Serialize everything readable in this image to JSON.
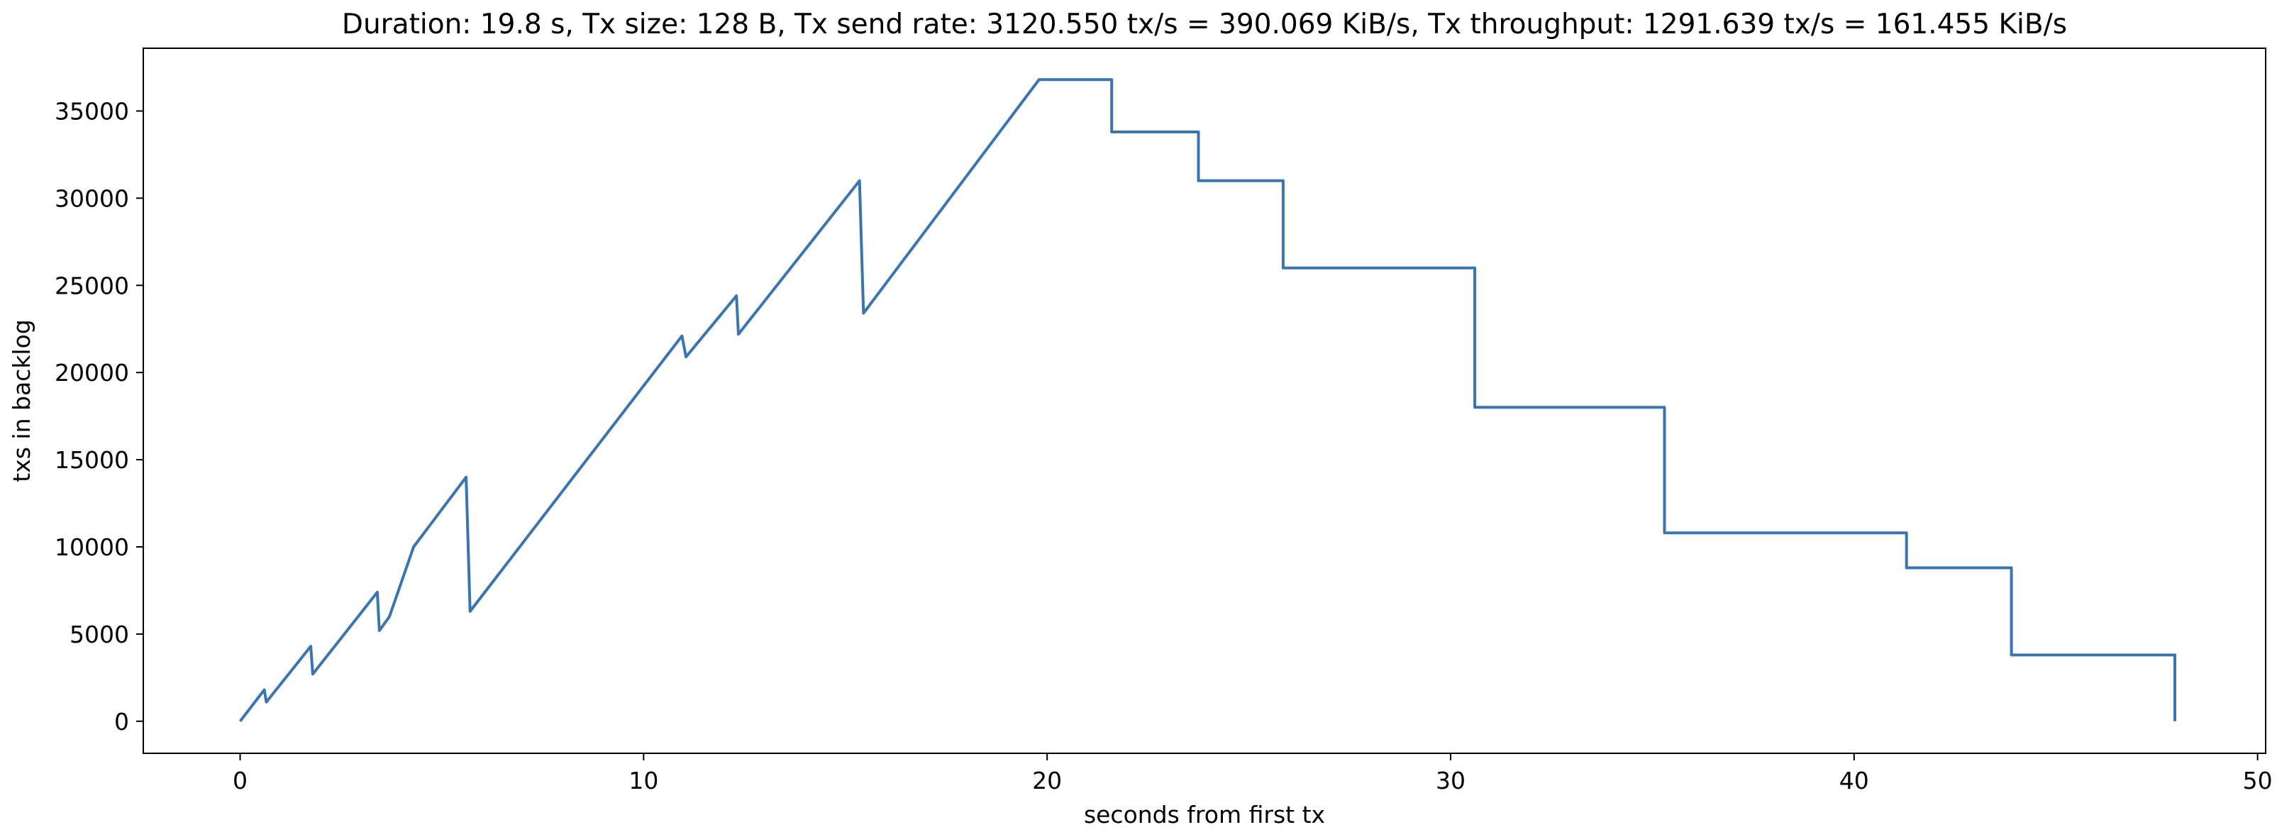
{
  "chart_data": {
    "type": "line",
    "title": "Duration: 19.8 s, Tx size: 128 B, Tx send rate: 3120.550 tx/s = 390.069 KiB/s, Tx throughput: 1291.639 tx/s = 161.455 KiB/s",
    "xlabel": "seconds from first tx",
    "ylabel": "txs in backlog",
    "xlim": [
      -2.4,
      50.2
    ],
    "ylim": [
      -1840,
      38600
    ],
    "x_ticks": [
      0,
      10,
      20,
      30,
      40,
      50
    ],
    "x_tick_labels": [
      "0",
      "10",
      "20",
      "30",
      "40",
      "50"
    ],
    "y_ticks": [
      0,
      5000,
      10000,
      15000,
      20000,
      25000,
      30000,
      35000
    ],
    "y_tick_labels": [
      "0",
      "5000",
      "10000",
      "15000",
      "20000",
      "25000",
      "30000",
      "35000"
    ],
    "grid": false,
    "legend": "none",
    "line_color": "#3a75b0",
    "series": [
      {
        "x": [
          0,
          0.6,
          0.65,
          1.75,
          1.8,
          3.4,
          3.45,
          3.7,
          4.3,
          5.6,
          5.7,
          10.95,
          11.05,
          12.3,
          12.35,
          15.35,
          15.45,
          19.8,
          21.6,
          21.6,
          23.75,
          23.75,
          25.85,
          25.85,
          30.6,
          30.6,
          35.3,
          35.3,
          41.3,
          41.3,
          43.9,
          43.9,
          47.95,
          47.95
        ],
        "y": [
          0,
          1800,
          1100,
          4300,
          2700,
          7400,
          5200,
          6000,
          10000,
          14000,
          6300,
          22100,
          20900,
          24400,
          22200,
          31000,
          23400,
          36800,
          36800,
          33800,
          33800,
          31000,
          31000,
          26000,
          26000,
          18000,
          18000,
          10800,
          10800,
          8800,
          8800,
          3800,
          3800,
          0
        ]
      }
    ]
  }
}
